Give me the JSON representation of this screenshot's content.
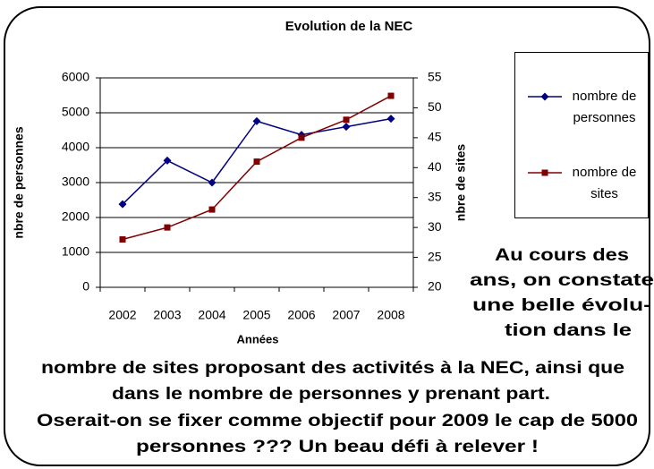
{
  "chart_data": {
    "type": "line",
    "title": "Evolution de la NEC",
    "x_label": "Années",
    "y_label": "nbre de personnes",
    "y2_label": "nbre de sites",
    "categories": [
      "2002",
      "2003",
      "2004",
      "2005",
      "2006",
      "2007",
      "2008"
    ],
    "series": [
      {
        "name": "nombre de personnes",
        "color": "#000080",
        "marker": "diamond",
        "values": [
          2380,
          3630,
          3000,
          4760,
          4370,
          4600,
          4830
        ]
      },
      {
        "name": "nombre de sites",
        "color": "#800000",
        "marker": "square",
        "axis": "y2",
        "values": [
          28,
          30,
          33,
          41,
          45,
          48,
          52
        ]
      }
    ],
    "ylim": [
      0,
      6000
    ],
    "yticks": [
      0,
      1000,
      2000,
      3000,
      4000,
      5000,
      6000
    ],
    "y2lim": [
      20,
      55
    ],
    "y2ticks": [
      20,
      25,
      30,
      35,
      40,
      45,
      50,
      55
    ],
    "grid": true,
    "legend": "right"
  },
  "caption_lines": [
    "Au cours des",
    "ans, on constate",
    "une belle évolu-",
    "tion dans le",
    "nombre de sites proposant des activités à la NEC, ainsi que",
    "dans le nombre de personnes y prenant part.",
    "Oserait-on se fixer comme objectif pour 2009 le cap de 5000",
    "personnes ???  Un beau défi à relever !"
  ]
}
